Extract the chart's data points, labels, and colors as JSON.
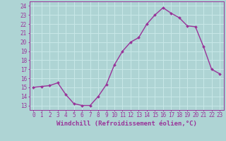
{
  "x": [
    0,
    1,
    2,
    3,
    4,
    5,
    6,
    7,
    8,
    9,
    10,
    11,
    12,
    13,
    14,
    15,
    16,
    17,
    18,
    19,
    20,
    21,
    22,
    23
  ],
  "y": [
    15,
    15.1,
    15.2,
    15.5,
    14.2,
    13.2,
    13.0,
    13.0,
    14.0,
    15.3,
    17.5,
    19.0,
    20.0,
    20.5,
    22.0,
    23.0,
    23.8,
    23.2,
    22.7,
    21.8,
    21.7,
    19.5,
    17.0,
    16.5
  ],
  "line_color": "#993399",
  "marker": "D",
  "markersize": 2.0,
  "linewidth": 1.0,
  "bg_color": "#aed4d4",
  "grid_color": "#c8e8e8",
  "tick_color": "#993399",
  "label_color": "#993399",
  "xlabel": "Windchill (Refroidissement éolien,°C)",
  "xlabel_fontsize": 6.5,
  "tick_fontsize": 5.5,
  "ylabel_ticks": [
    13,
    14,
    15,
    16,
    17,
    18,
    19,
    20,
    21,
    22,
    23,
    24
  ],
  "xlabel_ticks": [
    0,
    1,
    2,
    3,
    4,
    5,
    6,
    7,
    8,
    9,
    10,
    11,
    12,
    13,
    14,
    15,
    16,
    17,
    18,
    19,
    20,
    21,
    22,
    23
  ],
  "ylim": [
    12.5,
    24.5
  ],
  "xlim": [
    -0.5,
    23.5
  ]
}
